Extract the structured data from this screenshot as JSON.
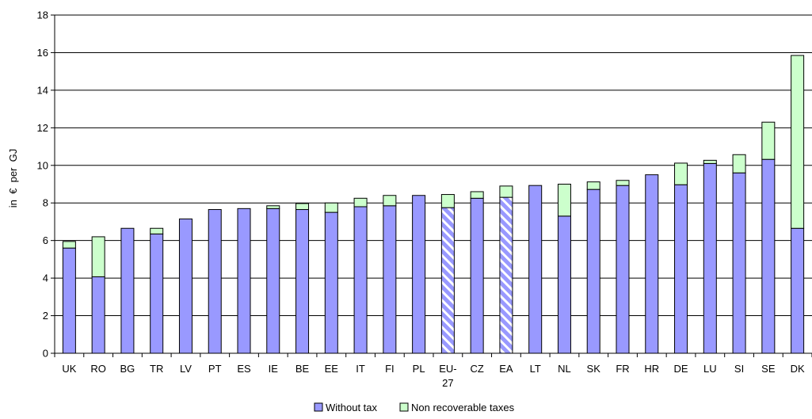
{
  "chart_data": {
    "type": "bar",
    "stacked": true,
    "title": "",
    "xlabel": "",
    "ylabel": "in  €  per  GJ",
    "ylim": [
      0,
      18
    ],
    "yticks": [
      0,
      2,
      4,
      6,
      8,
      10,
      12,
      14,
      16,
      18
    ],
    "grid": true,
    "legend_position": "bottom",
    "categories": [
      "UK",
      "RO",
      "BG",
      "TR",
      "LV",
      "PT",
      "ES",
      "IE",
      "BE",
      "EE",
      "IT",
      "FI",
      "PL",
      "EU-27",
      "CZ",
      "EA",
      "LT",
      "NL",
      "SK",
      "FR",
      "HR",
      "DE",
      "LU",
      "SI",
      "SE",
      "DK"
    ],
    "category_labels": [
      [
        "UK"
      ],
      [
        "RO"
      ],
      [
        "BG"
      ],
      [
        "TR"
      ],
      [
        "LV"
      ],
      [
        "PT"
      ],
      [
        "ES"
      ],
      [
        "IE"
      ],
      [
        "BE"
      ],
      [
        "EE"
      ],
      [
        "IT"
      ],
      [
        "FI"
      ],
      [
        "PL"
      ],
      [
        "EU-",
        "27"
      ],
      [
        "CZ"
      ],
      [
        "EA"
      ],
      [
        "LT"
      ],
      [
        "NL"
      ],
      [
        "SK"
      ],
      [
        "FR"
      ],
      [
        "HR"
      ],
      [
        "DE"
      ],
      [
        "LU"
      ],
      [
        "SI"
      ],
      [
        "SE"
      ],
      [
        "DK"
      ]
    ],
    "highlighted_categories": [
      "EU-27",
      "EA"
    ],
    "series": [
      {
        "name": "Without tax",
        "color": "#9999ff",
        "values": [
          5.6,
          4.07,
          6.65,
          6.35,
          7.15,
          7.65,
          7.7,
          7.7,
          7.65,
          7.5,
          7.8,
          7.85,
          8.4,
          7.75,
          8.25,
          8.3,
          8.93,
          7.3,
          8.72,
          8.93,
          9.5,
          8.97,
          10.1,
          9.6,
          10.32,
          6.65
        ]
      },
      {
        "name": "Non recoverable taxes",
        "color": "#ccffcc",
        "values": [
          0.35,
          2.13,
          0,
          0.3,
          0,
          0,
          0,
          0.15,
          0.32,
          0.5,
          0.45,
          0.55,
          0,
          0.7,
          0.35,
          0.6,
          0,
          1.7,
          0.4,
          0.27,
          0,
          1.15,
          0.17,
          0.97,
          1.98,
          9.2
        ]
      }
    ]
  }
}
